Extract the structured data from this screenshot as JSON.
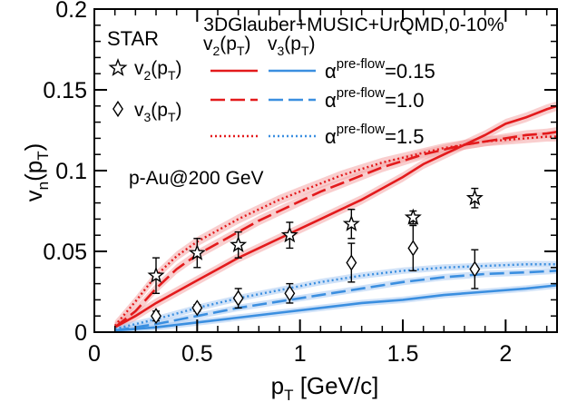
{
  "chart_data": {
    "type": "line",
    "title": "3DGlauber+MUSIC+UrQMD,0-10%",
    "experiment_label": "STAR",
    "system_label": "p-Au@200 GeV",
    "xlabel": {
      "main": "p",
      "sub": "T",
      "rest": " [GeV/c]"
    },
    "ylabel": {
      "main": "v",
      "sub": "n",
      "open": "(p",
      "sub2": "T",
      "close": ")"
    },
    "xlim": [
      0,
      2.25
    ],
    "ylim": [
      0,
      0.2
    ],
    "x_ticks": [
      0,
      0.5,
      1,
      1.5,
      2
    ],
    "x_tick_labels": [
      "0",
      "0.5",
      "1",
      "1.5",
      "2"
    ],
    "y_ticks": [
      0,
      0.05,
      0.1,
      0.15,
      0.2
    ],
    "y_tick_labels": [
      "0",
      "0.05",
      "0.1",
      "0.15",
      "0.2"
    ],
    "grid": false,
    "colors": {
      "v2": "#e31a1c",
      "v3": "#3b8fe0",
      "v2_band": "#f4a6a6",
      "v3_band": "#a9cbf2"
    },
    "legend": {
      "data_entries": [
        {
          "marker": "star",
          "main": "v",
          "sub": "2",
          "open": "(p",
          "sub2": "T",
          "close": ")"
        },
        {
          "marker": "diamond",
          "main": "v",
          "sub": "3",
          "open": "(p",
          "sub2": "T",
          "close": ")"
        }
      ],
      "model_headers": [
        {
          "main": "v",
          "sub": "2",
          "open": "(p",
          "sub2": "T",
          "close": ")"
        },
        {
          "main": "v",
          "sub": "3",
          "open": "(p",
          "sub2": "T",
          "close": ")"
        }
      ],
      "model_entries": [
        {
          "style": "solid",
          "alpha": "α",
          "sup": "pre-flow",
          "value": "=0.15"
        },
        {
          "style": "dashed",
          "alpha": "α",
          "sup": "pre-flow",
          "value": "=1.0"
        },
        {
          "style": "dotted",
          "alpha": "α",
          "sup": "pre-flow",
          "value": "=1.5"
        }
      ]
    },
    "data_series": [
      {
        "name": "v2",
        "marker": "star",
        "points": [
          {
            "x": 0.3,
            "y": 0.035,
            "err": 0.011
          },
          {
            "x": 0.5,
            "y": 0.049,
            "err": 0.009
          },
          {
            "x": 0.7,
            "y": 0.054,
            "err": 0.008
          },
          {
            "x": 0.95,
            "y": 0.06,
            "err": 0.008
          },
          {
            "x": 1.25,
            "y": 0.067,
            "err": 0.009
          },
          {
            "x": 1.55,
            "y": 0.071,
            "err": 0.004
          },
          {
            "x": 1.85,
            "y": 0.083,
            "err": 0.006
          }
        ]
      },
      {
        "name": "v3",
        "marker": "diamond",
        "points": [
          {
            "x": 0.3,
            "y": 0.01,
            "err": 0.003
          },
          {
            "x": 0.5,
            "y": 0.015,
            "err": 0.002
          },
          {
            "x": 0.7,
            "y": 0.021,
            "err": 0.006
          },
          {
            "x": 0.95,
            "y": 0.024,
            "err": 0.006
          },
          {
            "x": 1.25,
            "y": 0.043,
            "err": 0.012
          },
          {
            "x": 1.55,
            "y": 0.052,
            "err": 0.014
          },
          {
            "x": 1.85,
            "y": 0.039,
            "err": 0.012
          }
        ]
      }
    ],
    "model_curves": [
      {
        "harmonic": "v2",
        "style": "solid",
        "band": 0.003,
        "points": [
          [
            0.1,
            0.003
          ],
          [
            0.2,
            0.01
          ],
          [
            0.3,
            0.018
          ],
          [
            0.4,
            0.025
          ],
          [
            0.5,
            0.032
          ],
          [
            0.6,
            0.039
          ],
          [
            0.7,
            0.046
          ],
          [
            0.8,
            0.052
          ],
          [
            0.9,
            0.058
          ],
          [
            1.0,
            0.064
          ],
          [
            1.1,
            0.07
          ],
          [
            1.2,
            0.076
          ],
          [
            1.3,
            0.082
          ],
          [
            1.4,
            0.089
          ],
          [
            1.5,
            0.096
          ],
          [
            1.6,
            0.104
          ],
          [
            1.7,
            0.11
          ],
          [
            1.8,
            0.116
          ],
          [
            1.9,
            0.122
          ],
          [
            2.0,
            0.129
          ],
          [
            2.1,
            0.133
          ],
          [
            2.2,
            0.138
          ],
          [
            2.25,
            0.14
          ]
        ]
      },
      {
        "harmonic": "v2",
        "style": "dashed",
        "band": 0.003,
        "points": [
          [
            0.1,
            0.003
          ],
          [
            0.2,
            0.013
          ],
          [
            0.3,
            0.027
          ],
          [
            0.4,
            0.039
          ],
          [
            0.5,
            0.048
          ],
          [
            0.6,
            0.055
          ],
          [
            0.7,
            0.062
          ],
          [
            0.8,
            0.069
          ],
          [
            0.9,
            0.075
          ],
          [
            1.0,
            0.081
          ],
          [
            1.1,
            0.087
          ],
          [
            1.2,
            0.092
          ],
          [
            1.3,
            0.097
          ],
          [
            1.4,
            0.102
          ],
          [
            1.5,
            0.106
          ],
          [
            1.6,
            0.11
          ],
          [
            1.7,
            0.113
          ],
          [
            1.8,
            0.116
          ],
          [
            1.9,
            0.118
          ],
          [
            2.0,
            0.12
          ],
          [
            2.1,
            0.122
          ],
          [
            2.2,
            0.123
          ],
          [
            2.25,
            0.124
          ]
        ]
      },
      {
        "harmonic": "v2",
        "style": "dotted",
        "band": 0.003,
        "points": [
          [
            0.1,
            0.004
          ],
          [
            0.2,
            0.019
          ],
          [
            0.3,
            0.035
          ],
          [
            0.4,
            0.047
          ],
          [
            0.5,
            0.056
          ],
          [
            0.6,
            0.063
          ],
          [
            0.7,
            0.07
          ],
          [
            0.8,
            0.076
          ],
          [
            0.9,
            0.082
          ],
          [
            1.0,
            0.087
          ],
          [
            1.1,
            0.092
          ],
          [
            1.2,
            0.097
          ],
          [
            1.3,
            0.101
          ],
          [
            1.4,
            0.105
          ],
          [
            1.5,
            0.108
          ],
          [
            1.6,
            0.111
          ],
          [
            1.7,
            0.114
          ],
          [
            1.8,
            0.116
          ],
          [
            1.9,
            0.118
          ],
          [
            2.0,
            0.119
          ],
          [
            2.1,
            0.12
          ],
          [
            2.2,
            0.121
          ],
          [
            2.25,
            0.121
          ]
        ]
      },
      {
        "harmonic": "v3",
        "style": "solid",
        "band": 0.002,
        "points": [
          [
            0.1,
            0.001
          ],
          [
            0.3,
            0.003
          ],
          [
            0.5,
            0.006
          ],
          [
            0.7,
            0.009
          ],
          [
            0.9,
            0.012
          ],
          [
            1.1,
            0.015
          ],
          [
            1.3,
            0.018
          ],
          [
            1.5,
            0.02
          ],
          [
            1.7,
            0.023
          ],
          [
            1.9,
            0.025
          ],
          [
            2.1,
            0.027
          ],
          [
            2.25,
            0.029
          ]
        ]
      },
      {
        "harmonic": "v3",
        "style": "dashed",
        "band": 0.002,
        "points": [
          [
            0.1,
            0.001
          ],
          [
            0.3,
            0.005
          ],
          [
            0.5,
            0.01
          ],
          [
            0.7,
            0.015
          ],
          [
            0.9,
            0.019
          ],
          [
            1.1,
            0.023
          ],
          [
            1.3,
            0.027
          ],
          [
            1.5,
            0.031
          ],
          [
            1.7,
            0.034
          ],
          [
            1.9,
            0.036
          ],
          [
            2.1,
            0.037
          ],
          [
            2.25,
            0.038
          ]
        ]
      },
      {
        "harmonic": "v3",
        "style": "dotted",
        "band": 0.002,
        "points": [
          [
            0.1,
            0.002
          ],
          [
            0.3,
            0.008
          ],
          [
            0.5,
            0.015
          ],
          [
            0.7,
            0.021
          ],
          [
            0.9,
            0.026
          ],
          [
            1.1,
            0.031
          ],
          [
            1.3,
            0.035
          ],
          [
            1.5,
            0.038
          ],
          [
            1.7,
            0.04
          ],
          [
            1.9,
            0.041
          ],
          [
            2.1,
            0.042
          ],
          [
            2.25,
            0.042
          ]
        ]
      }
    ]
  }
}
